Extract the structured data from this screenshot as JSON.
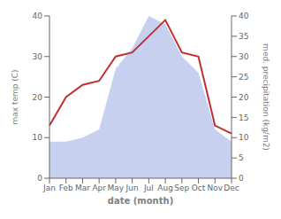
{
  "chart_data": {
    "type": "line",
    "xlabel": "date (month)",
    "ylabel": "max temp (C)",
    "y2label": "med. precipitation (kg/m2)",
    "categories": [
      "Jan",
      "Feb",
      "Mar",
      "Apr",
      "May",
      "Jun",
      "Jul",
      "Aug",
      "Sep",
      "Oct",
      "Nov",
      "Dec"
    ],
    "series": [
      {
        "type": "line",
        "color": "#c03030",
        "values": [
          13,
          20,
          23,
          24,
          30,
          31,
          35,
          39,
          31,
          30,
          13,
          11
        ]
      },
      {
        "type": "area",
        "axis": "y2",
        "color": "#c8d0f0",
        "values": [
          9,
          9,
          10,
          12,
          27,
          32,
          40,
          38,
          30,
          26,
          12,
          9
        ]
      }
    ],
    "ylim": [
      0,
      40
    ],
    "yticks": [
      0,
      10,
      20,
      30,
      40
    ],
    "y2lim": [
      0,
      40
    ],
    "y2ticks": [
      0,
      5,
      10,
      15,
      20,
      25,
      30,
      35,
      40
    ],
    "grid": false
  }
}
